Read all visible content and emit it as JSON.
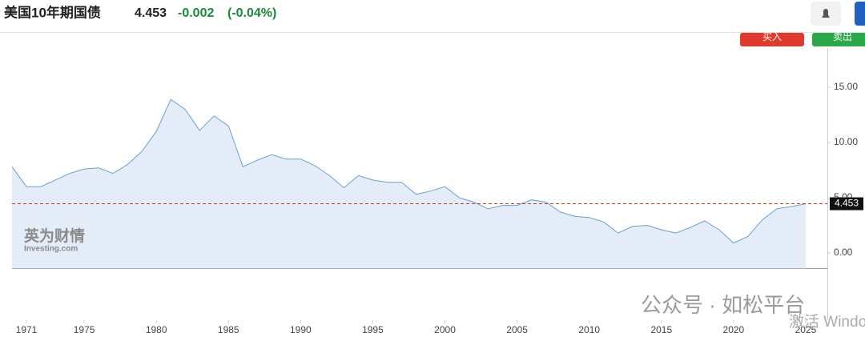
{
  "header": {
    "title": "美国10年期国债",
    "price": "4.453",
    "change": "-0.002",
    "change_pct": "(-0.04%)"
  },
  "buttons": {
    "buy": "买入",
    "sell": "卖出"
  },
  "watermarks": {
    "brand_cn": "英为财情",
    "brand_en": "Investing.com",
    "wechat": "公众号 · 如松平台",
    "windows": "激活 Windows"
  },
  "chart_data": {
    "type": "area",
    "x": [
      1970,
      1971,
      1972,
      1973,
      1974,
      1975,
      1976,
      1977,
      1978,
      1979,
      1980,
      1981,
      1982,
      1983,
      1984,
      1985,
      1986,
      1987,
      1988,
      1989,
      1990,
      1991,
      1992,
      1993,
      1994,
      1995,
      1996,
      1997,
      1998,
      1999,
      2000,
      2001,
      2002,
      2003,
      2004,
      2005,
      2006,
      2007,
      2008,
      2009,
      2010,
      2011,
      2012,
      2013,
      2014,
      2015,
      2016,
      2017,
      2018,
      2019,
      2020,
      2021,
      2022,
      2023,
      2024,
      2025
    ],
    "values": [
      7.8,
      6.0,
      6.0,
      6.6,
      7.2,
      7.6,
      7.7,
      7.2,
      8.0,
      9.2,
      11.0,
      13.9,
      13.0,
      11.1,
      12.4,
      11.5,
      7.8,
      8.4,
      8.9,
      8.5,
      8.5,
      7.9,
      7.0,
      5.9,
      7.0,
      6.6,
      6.4,
      6.4,
      5.3,
      5.6,
      6.0,
      5.0,
      4.6,
      4.0,
      4.3,
      4.3,
      4.8,
      4.6,
      3.7,
      3.3,
      3.2,
      2.8,
      1.8,
      2.4,
      2.5,
      2.1,
      1.8,
      2.3,
      2.9,
      2.1,
      0.9,
      1.5,
      3.0,
      4.0,
      4.2,
      4.45
    ],
    "color": "#6a9fcf",
    "xlim": [
      1970,
      2026.5
    ],
    "xticks": [
      1971,
      1975,
      1980,
      1985,
      1990,
      1995,
      2000,
      2005,
      2010,
      2015,
      2020,
      2025
    ],
    "ylim": [
      -1.4,
      19
    ],
    "yticks": [
      {
        "value": 0,
        "label": "0.00"
      },
      {
        "value": 5,
        "label": "5.00"
      },
      {
        "value": 10,
        "label": "10.00"
      },
      {
        "value": 15,
        "label": "15.00"
      }
    ],
    "ref_line": 4.453,
    "ref_color": "#c0392b"
  }
}
